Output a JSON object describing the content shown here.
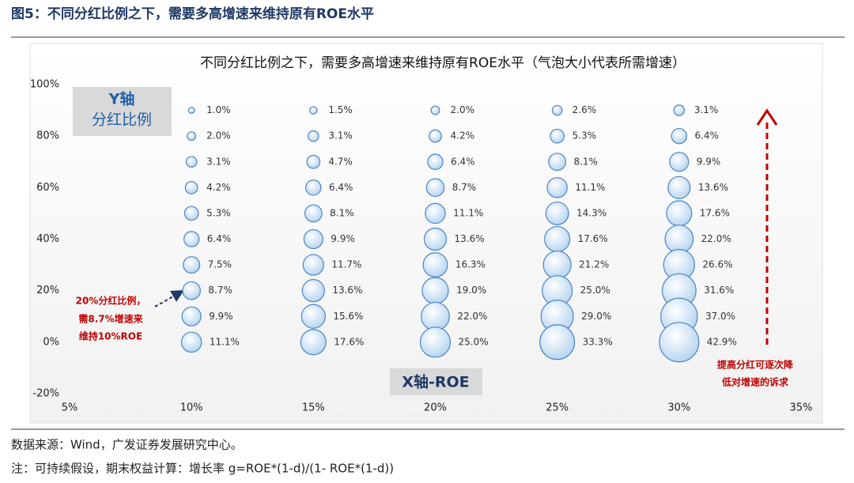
{
  "header": {
    "title": "图5：不同分红比例之下，需要多高增速来维持原有ROE水平"
  },
  "chart_data": {
    "type": "bubble",
    "title": "不同分红比例之下，需要多高增速来维持原有ROE水平（气泡大小代表所需增速）",
    "y_axis_label": [
      "Y轴",
      "分红比例"
    ],
    "x_axis_label": "X轴-ROE",
    "xlim": [
      5,
      35
    ],
    "xticks": [
      {
        "value": 5,
        "label": "5%"
      },
      {
        "value": 10,
        "label": "10%"
      },
      {
        "value": 15,
        "label": "15%"
      },
      {
        "value": 20,
        "label": "20%"
      },
      {
        "value": 25,
        "label": "25%"
      },
      {
        "value": 30,
        "label": "30%"
      },
      {
        "value": 35,
        "label": "35%"
      }
    ],
    "ylim": [
      -20,
      100
    ],
    "yticks": [
      {
        "value": -20,
        "label": "-20%"
      },
      {
        "value": 0,
        "label": "0%"
      },
      {
        "value": 20,
        "label": "20%"
      },
      {
        "value": 40,
        "label": "40%"
      },
      {
        "value": 60,
        "label": "60%"
      },
      {
        "value": 80,
        "label": "80%"
      },
      {
        "value": 100,
        "label": "100%"
      }
    ],
    "color": "#4a86c5",
    "x": [
      10,
      10,
      10,
      10,
      10,
      10,
      10,
      10,
      10,
      10,
      15,
      15,
      15,
      15,
      15,
      15,
      15,
      15,
      15,
      15,
      20,
      20,
      20,
      20,
      20,
      20,
      20,
      20,
      20,
      20,
      25,
      25,
      25,
      25,
      25,
      25,
      25,
      25,
      25,
      25,
      30,
      30,
      30,
      30,
      30,
      30,
      30,
      30,
      30,
      30
    ],
    "y": [
      90,
      80,
      70,
      60,
      50,
      40,
      30,
      20,
      10,
      0,
      90,
      80,
      70,
      60,
      50,
      40,
      30,
      20,
      10,
      0,
      90,
      80,
      70,
      60,
      50,
      40,
      30,
      20,
      10,
      0,
      90,
      80,
      70,
      60,
      50,
      40,
      30,
      20,
      10,
      0,
      90,
      80,
      70,
      60,
      50,
      40,
      30,
      20,
      10,
      0
    ],
    "sizes": [
      1.0,
      2.0,
      3.1,
      4.2,
      5.3,
      6.4,
      7.5,
      8.7,
      9.9,
      11.1,
      1.5,
      3.1,
      4.7,
      6.4,
      8.1,
      9.9,
      11.7,
      13.6,
      15.6,
      17.6,
      2.0,
      4.2,
      6.4,
      8.7,
      11.1,
      13.6,
      16.3,
      19.0,
      22.0,
      25.0,
      2.6,
      5.3,
      8.1,
      11.1,
      14.3,
      17.6,
      21.2,
      25.0,
      29.0,
      33.3,
      3.1,
      6.4,
      9.9,
      13.6,
      17.6,
      22.0,
      26.6,
      31.6,
      37.0,
      42.9
    ],
    "size_labels": [
      "1.0%",
      "2.0%",
      "3.1%",
      "4.2%",
      "5.3%",
      "6.4%",
      "7.5%",
      "8.7%",
      "9.9%",
      "11.1%",
      "1.5%",
      "3.1%",
      "4.7%",
      "6.4%",
      "8.1%",
      "9.9%",
      "11.7%",
      "13.6%",
      "15.6%",
      "17.6%",
      "2.0%",
      "4.2%",
      "6.4%",
      "8.7%",
      "11.1%",
      "13.6%",
      "16.3%",
      "19.0%",
      "22.0%",
      "25.0%",
      "2.6%",
      "5.3%",
      "8.1%",
      "11.1%",
      "14.3%",
      "17.6%",
      "21.2%",
      "25.0%",
      "29.0%",
      "33.3%",
      "3.1%",
      "6.4%",
      "9.9%",
      "13.6%",
      "17.6%",
      "22.0%",
      "26.6%",
      "31.6%",
      "37.0%",
      "42.9%"
    ],
    "annotations": [
      [
        "20%分红比例，",
        "需8.7%增速来",
        "维持10%ROE"
      ],
      [
        "提高分红可逐次降",
        "低对增速的诉求"
      ]
    ]
  },
  "footer": {
    "source": "数据来源：Wind，广发证券发展研究中心。",
    "note": "注：可持续假设，期末权益计算：增长率 g=ROE*(1-d)/(1- ROE*(1-d))"
  }
}
